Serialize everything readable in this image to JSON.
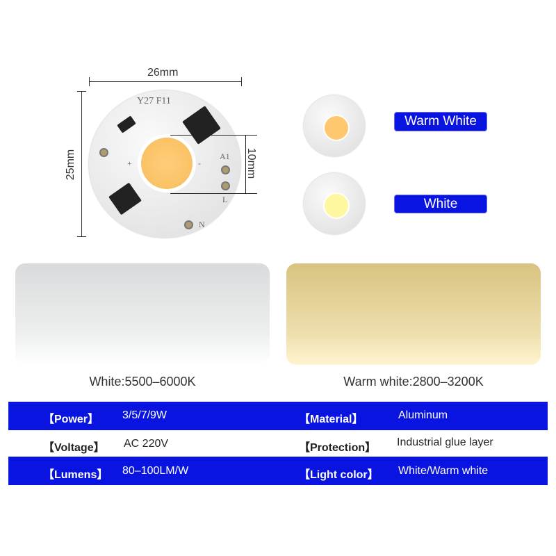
{
  "dimensions": {
    "width": "26mm",
    "height": "25mm",
    "cob": "10mm"
  },
  "pcb_markings": {
    "model": "Y27 F11",
    "a1": "A1",
    "l": "L",
    "n": "N",
    "plus": "+",
    "minus": "-"
  },
  "variants": [
    {
      "label": "Warm White",
      "cob_color": "#ffc870"
    },
    {
      "label": "White",
      "cob_color": "#fff6a0"
    }
  ],
  "light_samples": [
    {
      "caption": "White:5500–6000K",
      "color": "#e8eaea"
    },
    {
      "caption": "Warm white:2800–3200K",
      "color": "#e6d29a"
    }
  ],
  "specs": [
    {
      "k1": "【Power】",
      "v1": "3/5/7/9W",
      "k2": "【Material】",
      "v2": "Aluminum"
    },
    {
      "k1": "【Voltage】",
      "v1": "AC 220V",
      "k2": "【Protection】",
      "v2": "Industrial glue layer"
    },
    {
      "k1": "【Lumens】",
      "v1": "80–100LM/W",
      "k2": "【Light color】",
      "v2": "White/Warm white"
    }
  ],
  "colors": {
    "accent_blue": "#0a14e0"
  }
}
